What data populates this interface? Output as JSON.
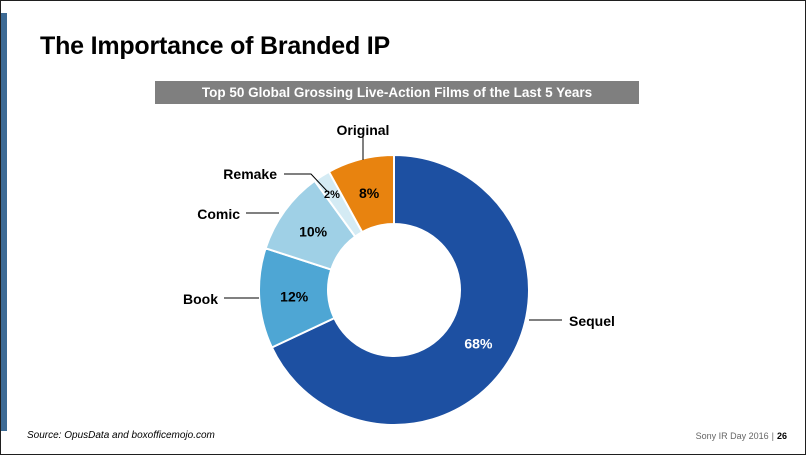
{
  "slide": {
    "title": "The Importance of Branded IP",
    "source": "Source: OpusData and boxofficemojo.com",
    "event": "Sony IR Day 2016",
    "separator": "|",
    "page_number": "26"
  },
  "colors": {
    "accent": "#3d6a94",
    "chart_title_bg": "#7f7f7f"
  },
  "chart_data": {
    "type": "pie",
    "donut": true,
    "title": "Top 50 Global Grossing Live-Action Films of the Last 5 Years",
    "slices": [
      {
        "label": "Sequel",
        "value": 68,
        "value_label": "68%",
        "color": "#1d50a2",
        "text_color": "#ffffff"
      },
      {
        "label": "Book",
        "value": 12,
        "value_label": "12%",
        "color": "#4ea6d4",
        "text_color": "#000000"
      },
      {
        "label": "Comic",
        "value": 10,
        "value_label": "10%",
        "color": "#9fd0e6",
        "text_color": "#000000"
      },
      {
        "label": "Remake",
        "value": 2,
        "value_label": "2%",
        "color": "#d4ebf4",
        "text_color": "#000000"
      },
      {
        "label": "Original",
        "value": 8,
        "value_label": "8%",
        "color": "#e8830f",
        "text_color": "#000000"
      }
    ]
  }
}
